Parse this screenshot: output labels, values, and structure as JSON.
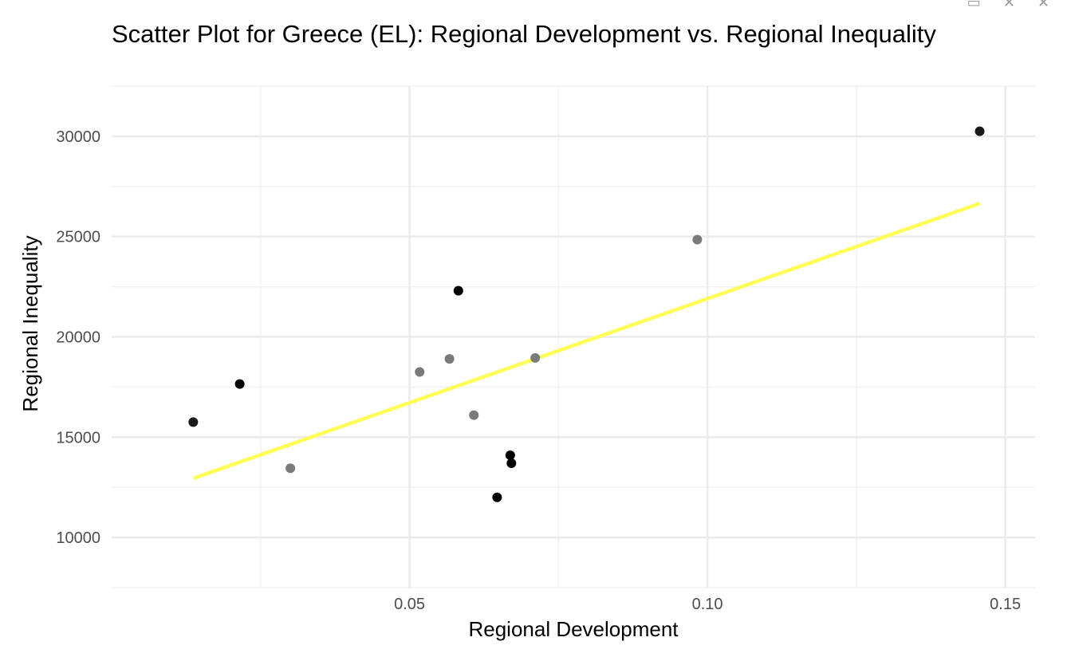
{
  "window": {
    "controls": [
      "▭",
      "✕",
      "✕"
    ]
  },
  "chart_data": {
    "type": "scatter",
    "title": "Scatter Plot for Greece (EL): Regional Development vs. Regional Inequality",
    "xlabel": "Regional Development",
    "ylabel": "Regional Inequality",
    "xlim": [
      0.0,
      0.155
    ],
    "ylim": [
      7500,
      32500
    ],
    "x_ticks": [
      0.05,
      0.1,
      0.15
    ],
    "x_tick_labels": [
      "0.05",
      "0.10",
      "0.15"
    ],
    "x_minor_ticks": [
      0.025,
      0.075,
      0.125
    ],
    "y_ticks": [
      10000,
      15000,
      20000,
      25000,
      30000
    ],
    "y_tick_labels": [
      "10000",
      "15000",
      "20000",
      "25000",
      "30000"
    ],
    "y_minor_ticks": [
      7500,
      12500,
      17500,
      22500,
      27500,
      32500
    ],
    "grid": true,
    "points": [
      {
        "x": 0.0137,
        "y": 15750,
        "color": "#1a1a1a"
      },
      {
        "x": 0.0215,
        "y": 17650,
        "color": "#000000"
      },
      {
        "x": 0.03,
        "y": 13450,
        "color": "#7a7a7a"
      },
      {
        "x": 0.0517,
        "y": 18250,
        "color": "#7a7a7a"
      },
      {
        "x": 0.0567,
        "y": 18900,
        "color": "#7a7a7a"
      },
      {
        "x": 0.0582,
        "y": 22300,
        "color": "#000000"
      },
      {
        "x": 0.0608,
        "y": 16100,
        "color": "#7a7a7a"
      },
      {
        "x": 0.0647,
        "y": 12000,
        "color": "#000000"
      },
      {
        "x": 0.0669,
        "y": 14100,
        "color": "#000000"
      },
      {
        "x": 0.0671,
        "y": 13700,
        "color": "#000000"
      },
      {
        "x": 0.0711,
        "y": 18950,
        "color": "#7a7a7a"
      },
      {
        "x": 0.0983,
        "y": 24850,
        "color": "#7a7a7a"
      },
      {
        "x": 0.1457,
        "y": 30250,
        "color": "#1a1a1a"
      }
    ],
    "trend_line": {
      "x": [
        0.0137,
        0.1457
      ],
      "y": [
        12950,
        26650
      ],
      "color": "#ffff55"
    }
  }
}
